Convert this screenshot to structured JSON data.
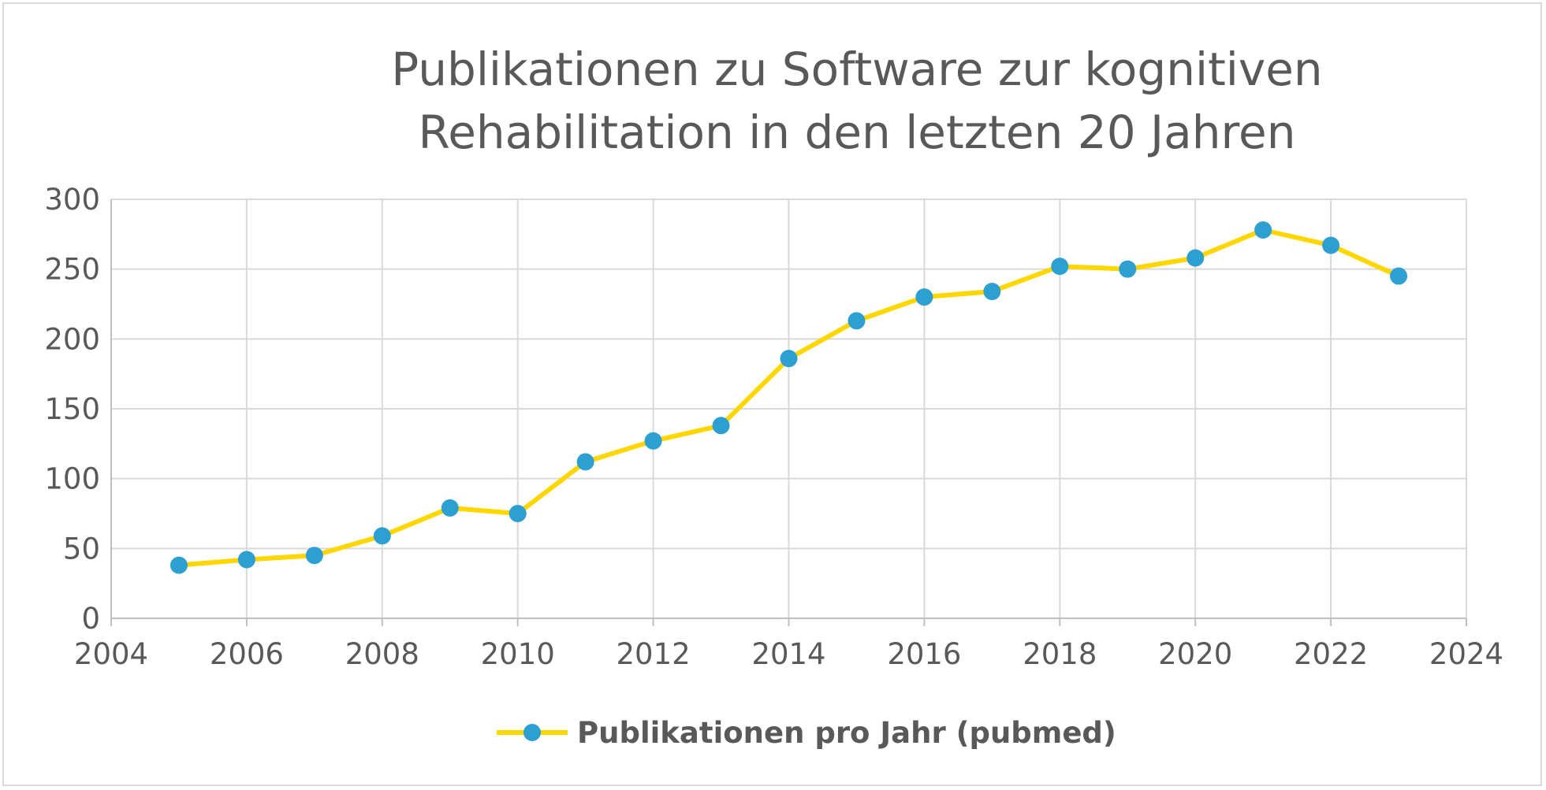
{
  "chart_data": {
    "type": "line",
    "title_lines": [
      "Publikationen zu Software zur kognitiven",
      "Rehabilitation in den letzten 20 Jahren"
    ],
    "xlabel": "",
    "ylabel": "",
    "xlim": [
      2004,
      2024
    ],
    "ylim": [
      0,
      300
    ],
    "x_ticks": [
      2004,
      2006,
      2008,
      2010,
      2012,
      2014,
      2016,
      2018,
      2020,
      2022,
      2024
    ],
    "y_ticks": [
      0,
      50,
      100,
      150,
      200,
      250,
      300
    ],
    "grid": true,
    "legend_position": "bottom",
    "series": [
      {
        "name": "Publikationen pro Jahr (pubmed)",
        "line_color": "#FFD700",
        "marker_color": "#2E9FD1",
        "x": [
          2005,
          2006,
          2007,
          2008,
          2009,
          2010,
          2011,
          2012,
          2013,
          2014,
          2015,
          2016,
          2017,
          2018,
          2019,
          2020,
          2021,
          2022,
          2023
        ],
        "y": [
          38,
          42,
          45,
          59,
          79,
          75,
          112,
          127,
          138,
          186,
          213,
          230,
          234,
          252,
          250,
          258,
          278,
          267,
          245
        ]
      }
    ]
  }
}
